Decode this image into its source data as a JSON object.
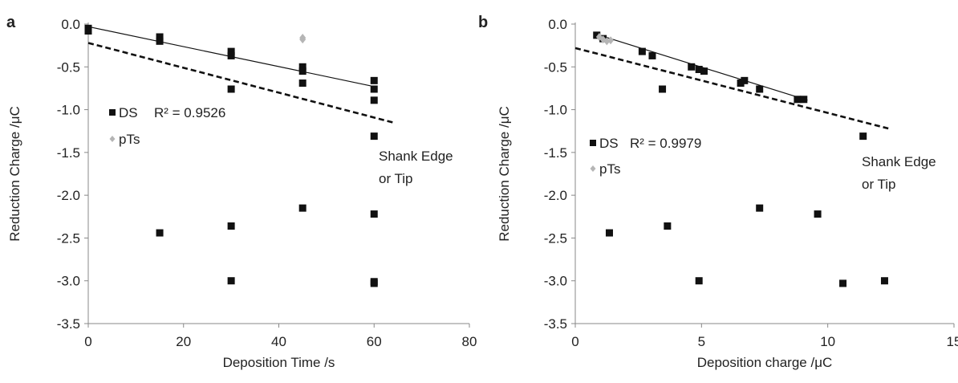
{
  "chart_data": [
    {
      "type": "scatter",
      "panel_label": "a",
      "xlabel": "Deposition Time /s",
      "ylabel": "Reduction Charge /μC",
      "xlim": [
        0,
        80
      ],
      "ylim": [
        -3.5,
        0.0
      ],
      "x_ticks": [
        0,
        20,
        40,
        60,
        80
      ],
      "x_tick_labels": [
        "0",
        "20",
        "40",
        "60",
        "80"
      ],
      "y_ticks": [
        0.0,
        -0.5,
        -1.0,
        -1.5,
        -2.0,
        -2.5,
        -3.0,
        -3.5
      ],
      "y_tick_labels": [
        "0.0",
        "-0.5",
        "-1.0",
        "-1.5",
        "-2.0",
        "-2.5",
        "-3.0",
        "-3.5"
      ],
      "grid": false,
      "series": [
        {
          "name": "DS",
          "marker": "square",
          "color": "#111111",
          "points": [
            [
              0,
              -0.05
            ],
            [
              0,
              -0.08
            ],
            [
              15,
              -0.15
            ],
            [
              15,
              -0.2
            ],
            [
              30,
              -0.32
            ],
            [
              30,
              -0.37
            ],
            [
              30,
              -0.76
            ],
            [
              45,
              -0.5
            ],
            [
              45,
              -0.55
            ],
            [
              45,
              -0.69
            ],
            [
              60,
              -0.66
            ],
            [
              60,
              -0.76
            ],
            [
              60,
              -0.89
            ],
            [
              60,
              -1.31
            ]
          ]
        },
        {
          "name": "pTs",
          "marker": "diamond",
          "color": "#b5b5b5",
          "points": [
            [
              45,
              -0.16
            ],
            [
              45,
              -0.18
            ]
          ]
        },
        {
          "name": "",
          "marker": "square",
          "color": "#111111",
          "points": [
            [
              15,
              -2.44
            ],
            [
              30,
              -2.36
            ],
            [
              30,
              -3.0
            ],
            [
              45,
              -2.15
            ],
            [
              60,
              -2.22
            ],
            [
              60,
              -3.01
            ],
            [
              60,
              -3.03
            ]
          ]
        }
      ],
      "trendlines": [
        {
          "style": "solid",
          "from": [
            0,
            -0.03
          ],
          "to": [
            60,
            -0.73
          ]
        },
        {
          "style": "dashed",
          "from": [
            0,
            -0.22
          ],
          "to": [
            64,
            -1.15
          ]
        }
      ],
      "annotations": {
        "r2": "R² = 0.9526",
        "region_line1": "Shank Edge",
        "region_line2": "or Tip"
      },
      "legend": {
        "position": "left-middle",
        "entries": [
          "DS",
          "pTs"
        ]
      }
    },
    {
      "type": "scatter",
      "panel_label": "b",
      "xlabel": "Deposition charge /μC",
      "ylabel": "Reduction Charge /μC",
      "xlim": [
        0,
        15
      ],
      "ylim": [
        -3.5,
        0.0
      ],
      "x_ticks": [
        0,
        5,
        10,
        15
      ],
      "x_tick_labels": [
        "0",
        "5",
        "10",
        "15"
      ],
      "y_ticks": [
        0.0,
        -0.5,
        -1.0,
        -1.5,
        -2.0,
        -2.5,
        -3.0,
        -3.5
      ],
      "y_tick_labels": [
        "0.0",
        "-0.5",
        "-1.0",
        "-1.5",
        "-2.0",
        "-2.5",
        "-3.0",
        "-3.5"
      ],
      "grid": false,
      "series": [
        {
          "name": "DS",
          "marker": "square",
          "color": "#111111",
          "points": [
            [
              0.85,
              -0.13
            ],
            [
              1.1,
              -0.17
            ],
            [
              2.65,
              -0.32
            ],
            [
              3.05,
              -0.37
            ],
            [
              3.45,
              -0.76
            ],
            [
              4.6,
              -0.5
            ],
            [
              4.9,
              -0.53
            ],
            [
              5.1,
              -0.55
            ],
            [
              6.55,
              -0.69
            ],
            [
              6.7,
              -0.66
            ],
            [
              7.3,
              -0.76
            ],
            [
              8.8,
              -0.88
            ],
            [
              9.05,
              -0.88
            ],
            [
              11.4,
              -1.31
            ]
          ]
        },
        {
          "name": "pTs",
          "marker": "diamond",
          "color": "#b5b5b5",
          "points": [
            [
              0.95,
              -0.15
            ],
            [
              1.1,
              -0.18
            ],
            [
              1.25,
              -0.2
            ],
            [
              1.4,
              -0.19
            ]
          ]
        },
        {
          "name": "",
          "marker": "square",
          "color": "#111111",
          "points": [
            [
              1.35,
              -2.44
            ],
            [
              3.65,
              -2.36
            ],
            [
              4.9,
              -3.0
            ],
            [
              7.3,
              -2.15
            ],
            [
              9.6,
              -2.22
            ],
            [
              10.6,
              -3.03
            ],
            [
              12.25,
              -3.0
            ]
          ]
        }
      ],
      "trendlines": [
        {
          "style": "solid",
          "from": [
            0.85,
            -0.12
          ],
          "to": [
            9.2,
            -0.89
          ]
        },
        {
          "style": "dashed",
          "from": [
            0,
            -0.28
          ],
          "to": [
            12.4,
            -1.22
          ]
        }
      ],
      "annotations": {
        "r2": "R² = 0.9979",
        "region_line1": "Shank Edge",
        "region_line2": "or Tip"
      },
      "legend": {
        "position": "left-middle",
        "entries": [
          "DS",
          "pTs"
        ]
      }
    }
  ]
}
